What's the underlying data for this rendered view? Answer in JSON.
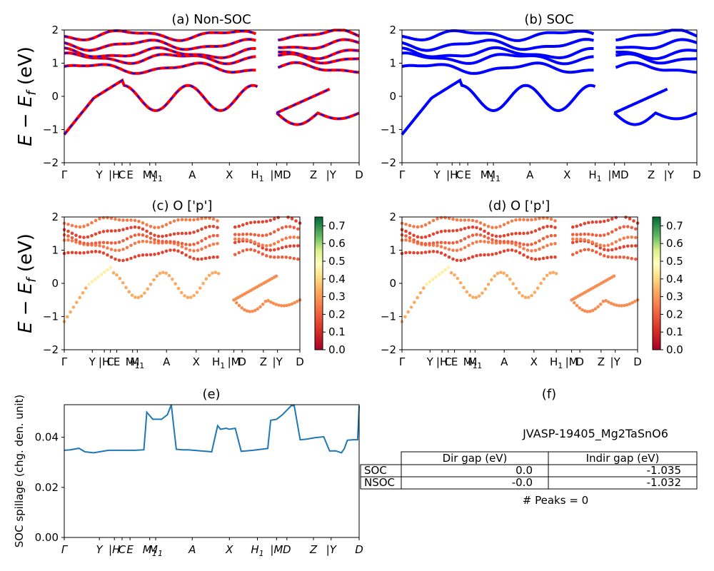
{
  "labels": {
    "x_ticks": [
      "Γ",
      "Y",
      "H",
      "C",
      "E",
      "M",
      "M",
      "A",
      "X",
      "H",
      "M",
      "D",
      "Z",
      "Y",
      "D"
    ],
    "x_ticks_e": [
      "Γ",
      "Y",
      "H",
      "C",
      "E",
      "M",
      "M",
      "A",
      "X",
      "H",
      "M",
      "D",
      "Z",
      "Y",
      "D"
    ],
    "subscript_1": "1",
    "bar": "|",
    "ylabel_E": "E − E",
    "ylabel_f": "f",
    "ylabel_unit": " (eV)",
    "colorbar_ticks": [
      "0.0",
      "0.1",
      "0.2",
      "0.3",
      "0.4",
      "0.5",
      "0.6",
      "0.7"
    ]
  },
  "chart_data": [
    {
      "type": "line",
      "title": "(a) Non-SOC",
      "series": [
        {
          "name": "",
          "color": "#ff0000",
          "style": "solid"
        },
        {
          "name": "",
          "color": "#0000ff",
          "style": "dashed"
        }
      ],
      "ylim": [
        -2,
        2
      ],
      "yticks": [
        "−2",
        "−1",
        "0",
        "1",
        "2"
      ]
    },
    {
      "type": "line",
      "title": "(b) SOC",
      "series": [
        {
          "name": "",
          "color": "#0000ff"
        }
      ],
      "ylim": [
        -2,
        2
      ],
      "yticks": [
        "−2",
        "−1",
        "0",
        "1",
        "2"
      ]
    },
    {
      "type": "scatter",
      "title": "(c)  O ['p']",
      "ylim": [
        -2,
        2
      ],
      "yticks": [
        "−2",
        "−1",
        "0",
        "1",
        "2"
      ],
      "colormap": "RdYlGn",
      "clim": [
        0.0,
        0.75
      ]
    },
    {
      "type": "scatter",
      "title": "(d) O ['p']",
      "ylim": [
        -2,
        2
      ],
      "yticks": [
        "−2",
        "−1",
        "0",
        "1",
        "2"
      ],
      "colormap": "RdYlGn",
      "clim": [
        0.0,
        0.75
      ]
    },
    {
      "type": "line",
      "title": "(e)",
      "ylabel": "SOC spillage (chg. den. unit)",
      "ylim": [
        0,
        0.053
      ],
      "yticks": [
        "0.00",
        "0.02",
        "0.04"
      ],
      "x": [
        0,
        0.02,
        0.05,
        0.07,
        0.1,
        0.15,
        0.2,
        0.22,
        0.24,
        0.27,
        0.28,
        0.3,
        0.33,
        0.35,
        0.363,
        0.38,
        0.4,
        0.42,
        0.46,
        0.5,
        0.52,
        0.53,
        0.55,
        0.56,
        0.58,
        0.6,
        0.62,
        0.64,
        0.69,
        0.7,
        0.72,
        0.74,
        0.77,
        0.78,
        0.8,
        0.82,
        0.85,
        0.88,
        0.9,
        0.92,
        0.94,
        0.95,
        0.96,
        0.98,
        0.995,
        1.0
      ],
      "values": [
        0.0348,
        0.035,
        0.0356,
        0.0342,
        0.0338,
        0.0348,
        0.0348,
        0.0348,
        0.0348,
        0.035,
        0.05,
        0.0472,
        0.0472,
        0.049,
        0.053,
        0.0352,
        0.035,
        0.035,
        0.0346,
        0.0342,
        0.0446,
        0.0432,
        0.0436,
        0.0432,
        0.0436,
        0.0344,
        0.0346,
        0.0348,
        0.0355,
        0.0468,
        0.0472,
        0.049,
        0.0526,
        0.0526,
        0.039,
        0.0392,
        0.0398,
        0.0402,
        0.0345,
        0.0346,
        0.0338,
        0.0355,
        0.0388,
        0.039,
        0.039,
        0.0526
      ]
    },
    {
      "type": "table",
      "title": "(f)",
      "caption": "JVASP-19405_Mg2TaSnO6",
      "columns": [
        "Dir gap (eV)",
        "Indir gap (eV)"
      ],
      "rows": [
        {
          "label": "SOC",
          "values": [
            "0.0",
            "-1.035"
          ]
        },
        {
          "label": "NSOC",
          "values": [
            "-0.0",
            "-1.032"
          ]
        }
      ],
      "footer": "# Peaks = 0"
    }
  ]
}
